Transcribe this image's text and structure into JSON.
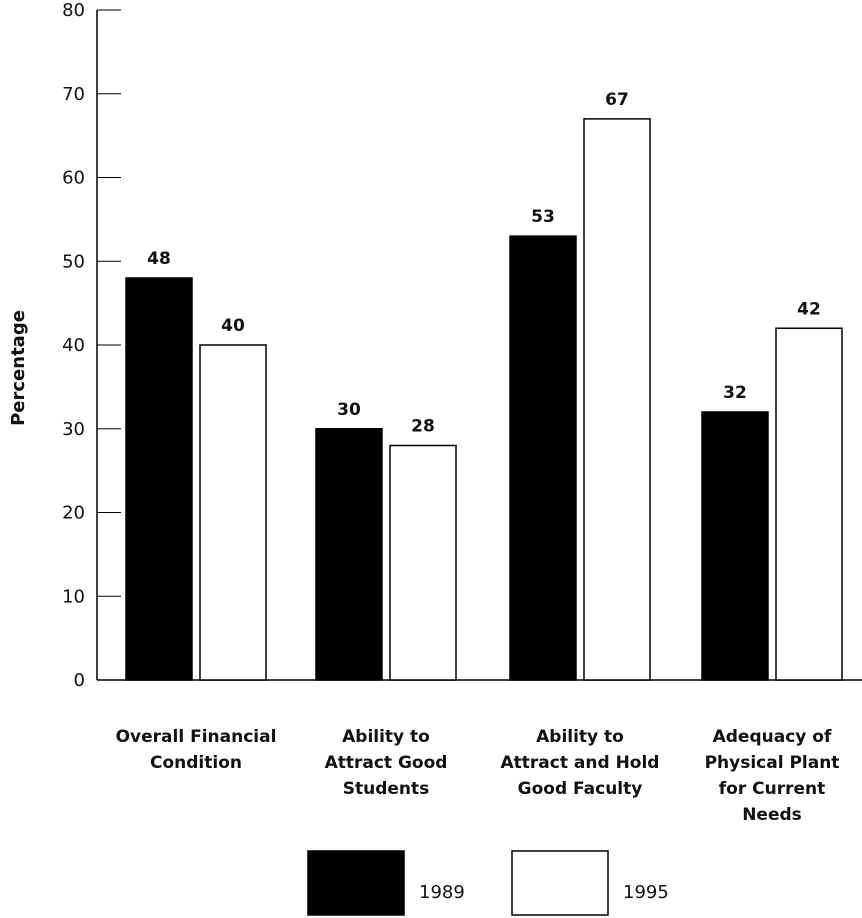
{
  "chart_data": {
    "type": "bar",
    "ylabel": "Percentage",
    "ylim": [
      0,
      80
    ],
    "yticks": [
      0,
      10,
      20,
      30,
      40,
      50,
      60,
      70,
      80
    ],
    "ytick_labels": [
      "0",
      "10",
      "20",
      "30",
      "40",
      "50",
      "60",
      "70",
      "80"
    ],
    "categories": [
      [
        "Overall Financial",
        "Condition"
      ],
      [
        "Ability to",
        "Attract Good",
        "Students"
      ],
      [
        "Ability to",
        "Attract and Hold",
        "Good Faculty"
      ],
      [
        "Adequacy of",
        "Physical Plant",
        "for Current",
        "Needs"
      ]
    ],
    "series": [
      {
        "name": "1989",
        "color": "#000000",
        "values": [
          48,
          30,
          53,
          32
        ]
      },
      {
        "name": "1995",
        "color": "#ffffff",
        "values": [
          40,
          28,
          67,
          42
        ]
      }
    ],
    "legend_position": "bottom",
    "grid": false
  }
}
